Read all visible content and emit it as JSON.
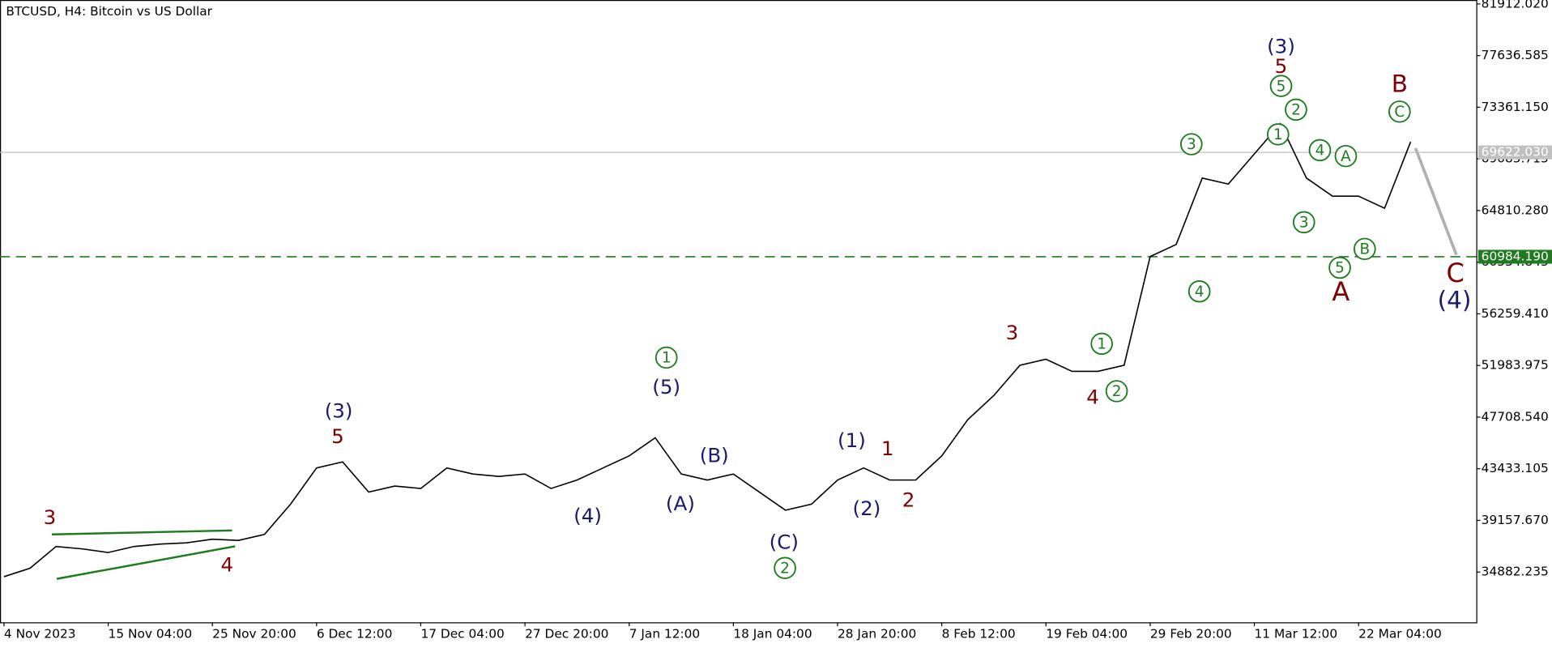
{
  "chart_data": {
    "type": "line",
    "title": "BTCUSD, H4:  Bitcoin vs US Dollar",
    "categories": [
      "4 Nov 2023",
      null,
      null,
      null,
      "15 Nov 04:00",
      null,
      null,
      null,
      "25 Nov 20:00",
      null,
      null,
      null,
      "6 Dec 12:00",
      null,
      null,
      null,
      "17 Dec 04:00",
      null,
      null,
      null,
      "27 Dec 20:00",
      null,
      null,
      null,
      "7 Jan 12:00",
      null,
      null,
      null,
      "18 Jan 04:00",
      null,
      null,
      null,
      "28 Jan 20:00",
      null,
      null,
      null,
      "8 Feb 12:00",
      null,
      null,
      null,
      "19 Feb 04:00",
      null,
      null,
      null,
      "29 Feb 20:00",
      null,
      null,
      null,
      "11 Mar 12:00",
      null,
      null,
      null,
      "22 Mar 04:00",
      null,
      null
    ],
    "values": [
      34500,
      35200,
      37000,
      36800,
      36500,
      37000,
      37200,
      37300,
      37600,
      37500,
      38000,
      40500,
      43500,
      44000,
      41500,
      42000,
      41800,
      43500,
      43000,
      42800,
      43000,
      41800,
      42500,
      43500,
      44500,
      46000,
      43000,
      42500,
      43000,
      41500,
      40000,
      40500,
      42500,
      43500,
      42500,
      42500,
      44500,
      47500,
      49500,
      52000,
      52500,
      51500,
      51500,
      52000,
      61000,
      62000,
      67500,
      67000,
      69500,
      72000,
      67500,
      66000,
      66000,
      65000,
      70500
    ],
    "color": "#000000",
    "ylim": [
      30721,
      82238
    ],
    "yticks": [
      {
        "value": 81912.02,
        "label": "81912.020"
      },
      {
        "value": 77636.585,
        "label": "77636.585"
      },
      {
        "value": 73361.15,
        "label": "73361.150"
      },
      {
        "value": 69085.715,
        "label": "69085.715"
      },
      {
        "value": 64810.28,
        "label": "64810.280"
      },
      {
        "value": 60534.845,
        "label": "60534.845"
      },
      {
        "value": 56259.41,
        "label": "56259.410"
      },
      {
        "value": 51983.975,
        "label": "51983.975"
      },
      {
        "value": 47708.54,
        "label": "47708.540"
      },
      {
        "value": 43433.105,
        "label": "43433.105"
      },
      {
        "value": 39157.67,
        "label": "39157.670"
      },
      {
        "value": 34882.235,
        "label": "34882.235"
      }
    ],
    "price_lines": [
      {
        "value": 69622.03,
        "label": "69622.030",
        "color": "#c0c0c0",
        "dashed": false
      },
      {
        "value": 60984.19,
        "label": "60984.190",
        "color": "#1e7b1e",
        "dashed": true
      }
    ],
    "annotations": [
      {
        "text": "3",
        "color": "#7f0000",
        "circled": false
      },
      {
        "text": "4",
        "color": "#7f0000",
        "circled": false
      },
      {
        "text": "(3)",
        "color": "#1a1a6e",
        "circled": false
      },
      {
        "text": "5",
        "color": "#7f0000",
        "circled": false
      },
      {
        "text": "(4)",
        "color": "#1a1a6e",
        "circled": false
      },
      {
        "text": "1",
        "color": "#1e7b1e",
        "circled": true
      },
      {
        "text": "(5)",
        "color": "#1a1a6e",
        "circled": false
      },
      {
        "text": "(A)",
        "color": "#1a1a6e",
        "circled": false
      },
      {
        "text": "(B)",
        "color": "#1a1a6e",
        "circled": false
      },
      {
        "text": "(C)",
        "color": "#1a1a6e",
        "circled": false
      },
      {
        "text": "2",
        "color": "#1e7b1e",
        "circled": true
      },
      {
        "text": "(1)",
        "color": "#1a1a6e",
        "circled": false
      },
      {
        "text": "1",
        "color": "#7f0000",
        "circled": false
      },
      {
        "text": "(2)",
        "color": "#1a1a6e",
        "circled": false
      },
      {
        "text": "2",
        "color": "#7f0000",
        "circled": false
      },
      {
        "text": "3",
        "color": "#7f0000",
        "circled": false
      },
      {
        "text": "4",
        "color": "#7f0000",
        "circled": false
      },
      {
        "text": "2",
        "color": "#1e7b1e",
        "circled": true
      },
      {
        "text": "1",
        "color": "#1e7b1e",
        "circled": true
      },
      {
        "text": "3",
        "color": "#1e7b1e",
        "circled": true
      },
      {
        "text": "4",
        "color": "#1e7b1e",
        "circled": true
      },
      {
        "text": "(3)",
        "color": "#1a1a6e",
        "circled": false
      },
      {
        "text": "5",
        "color": "#7f0000",
        "circled": false
      },
      {
        "text": "5",
        "color": "#1e7b1e",
        "circled": true
      },
      {
        "text": "2",
        "color": "#1e7b1e",
        "circled": true
      },
      {
        "text": "1",
        "color": "#1e7b1e",
        "circled": true
      },
      {
        "text": "3",
        "color": "#1e7b1e",
        "circled": true
      },
      {
        "text": "4",
        "color": "#1e7b1e",
        "circled": true
      },
      {
        "text": "A",
        "color": "#1e7b1e",
        "circled": true
      },
      {
        "text": "5",
        "color": "#1e7b1e",
        "circled": true
      },
      {
        "text": "A",
        "color": "#7f0000",
        "circled": false
      },
      {
        "text": "B",
        "color": "#1e7b1e",
        "circled": true
      },
      {
        "text": "B",
        "color": "#7f0000",
        "circled": false
      },
      {
        "text": "C",
        "color": "#1e7b1e",
        "circled": true
      },
      {
        "text": "C",
        "color": "#7f0000",
        "circled": false
      },
      {
        "text": "(4)",
        "color": "#1a1a6e",
        "circled": false
      }
    ]
  }
}
